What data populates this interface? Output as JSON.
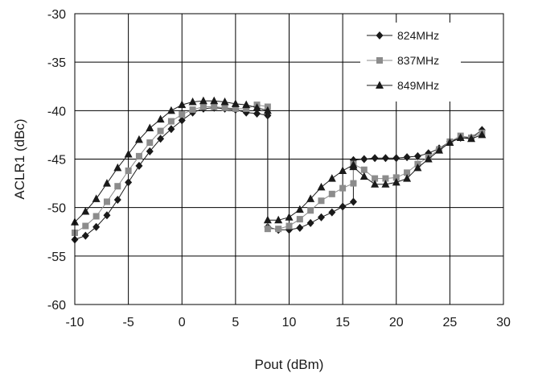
{
  "chart_data": {
    "type": "line",
    "title": "",
    "xlabel": "Pout (dBm)",
    "ylabel": "ACLR1 (dBc)",
    "xlim": [
      -10,
      30
    ],
    "ylim": [
      -60,
      -30
    ],
    "x_ticks": [
      -10,
      -5,
      0,
      5,
      10,
      15,
      20,
      25,
      30
    ],
    "y_ticks": [
      -30,
      -35,
      -40,
      -45,
      -50,
      -55,
      -60
    ],
    "x_tick_labels": [
      "-10",
      "-5",
      "0",
      "5",
      "10",
      "15",
      "20",
      "25",
      "30"
    ],
    "y_tick_labels": [
      "-30",
      "-35",
      "-40",
      "-45",
      "-50",
      "-55",
      "-60"
    ],
    "grid": true,
    "legend_position": "top-right",
    "series": [
      {
        "name": "824MHz",
        "marker": "diamond",
        "color": "#1a1a1a",
        "x": [
          -10,
          -9,
          -8,
          -7,
          -6,
          -5,
          -4,
          -3,
          -2,
          -1,
          0,
          1,
          2,
          3,
          4,
          5,
          6,
          7,
          8,
          8,
          9,
          10,
          11,
          12,
          13,
          14,
          15,
          16,
          16,
          17,
          18,
          19,
          20,
          21,
          22,
          23,
          24,
          25,
          26,
          27,
          28
        ],
        "y": [
          -53.3,
          -52.9,
          -52.0,
          -50.8,
          -49.2,
          -47.4,
          -45.7,
          -44.2,
          -42.9,
          -41.9,
          -41.0,
          -40.2,
          -39.8,
          -39.7,
          -39.8,
          -39.9,
          -40.2,
          -40.3,
          -40.5,
          -52.0,
          -52.3,
          -52.3,
          -52.1,
          -51.6,
          -51.0,
          -50.5,
          -49.9,
          -49.4,
          -45.1,
          -45.0,
          -44.9,
          -44.9,
          -44.9,
          -44.8,
          -44.7,
          -44.4,
          -43.9,
          -43.2,
          -42.8,
          -42.8,
          -42.0
        ]
      },
      {
        "name": "837MHz",
        "marker": "square",
        "color": "#8c8c8c",
        "x": [
          -10,
          -9,
          -8,
          -7,
          -6,
          -5,
          -4,
          -3,
          -2,
          -1,
          0,
          1,
          2,
          3,
          4,
          5,
          6,
          7,
          8,
          8,
          9,
          10,
          11,
          12,
          13,
          14,
          15,
          16,
          16,
          17,
          18,
          19,
          20,
          21,
          22,
          23,
          24,
          25,
          26,
          27,
          28
        ],
        "y": [
          -52.6,
          -51.9,
          -50.9,
          -49.4,
          -47.8,
          -46.2,
          -44.7,
          -43.3,
          -42.1,
          -41.1,
          -40.4,
          -39.9,
          -39.6,
          -39.6,
          -39.7,
          -39.8,
          -39.8,
          -39.4,
          -39.6,
          -52.2,
          -52.2,
          -51.9,
          -51.2,
          -50.3,
          -49.3,
          -48.6,
          -48.0,
          -47.5,
          -45.5,
          -46.1,
          -47.0,
          -47.0,
          -46.9,
          -46.4,
          -45.5,
          -44.8,
          -44.0,
          -43.2,
          -42.6,
          -42.8,
          -42.3
        ]
      },
      {
        "name": "849MHz",
        "marker": "triangle",
        "color": "#1a1a1a",
        "x": [
          -10,
          -9,
          -8,
          -7,
          -6,
          -5,
          -4,
          -3,
          -2,
          -1,
          0,
          1,
          2,
          3,
          4,
          5,
          6,
          7,
          8,
          8,
          9,
          10,
          11,
          12,
          13,
          14,
          15,
          16,
          16,
          17,
          18,
          19,
          20,
          21,
          22,
          23,
          24,
          25,
          26,
          27,
          28
        ],
        "y": [
          -51.5,
          -50.4,
          -49.1,
          -47.5,
          -45.9,
          -44.5,
          -43.0,
          -41.8,
          -40.9,
          -40.0,
          -39.4,
          -39.1,
          -39.0,
          -39.0,
          -39.1,
          -39.3,
          -39.4,
          -39.7,
          -40.0,
          -51.3,
          -51.3,
          -51.0,
          -50.2,
          -49.1,
          -47.9,
          -47.0,
          -46.2,
          -45.6,
          -45.8,
          -46.8,
          -47.6,
          -47.6,
          -47.4,
          -47.0,
          -45.9,
          -45.0,
          -44.1,
          -43.3,
          -42.8,
          -42.9,
          -42.5
        ]
      }
    ]
  }
}
